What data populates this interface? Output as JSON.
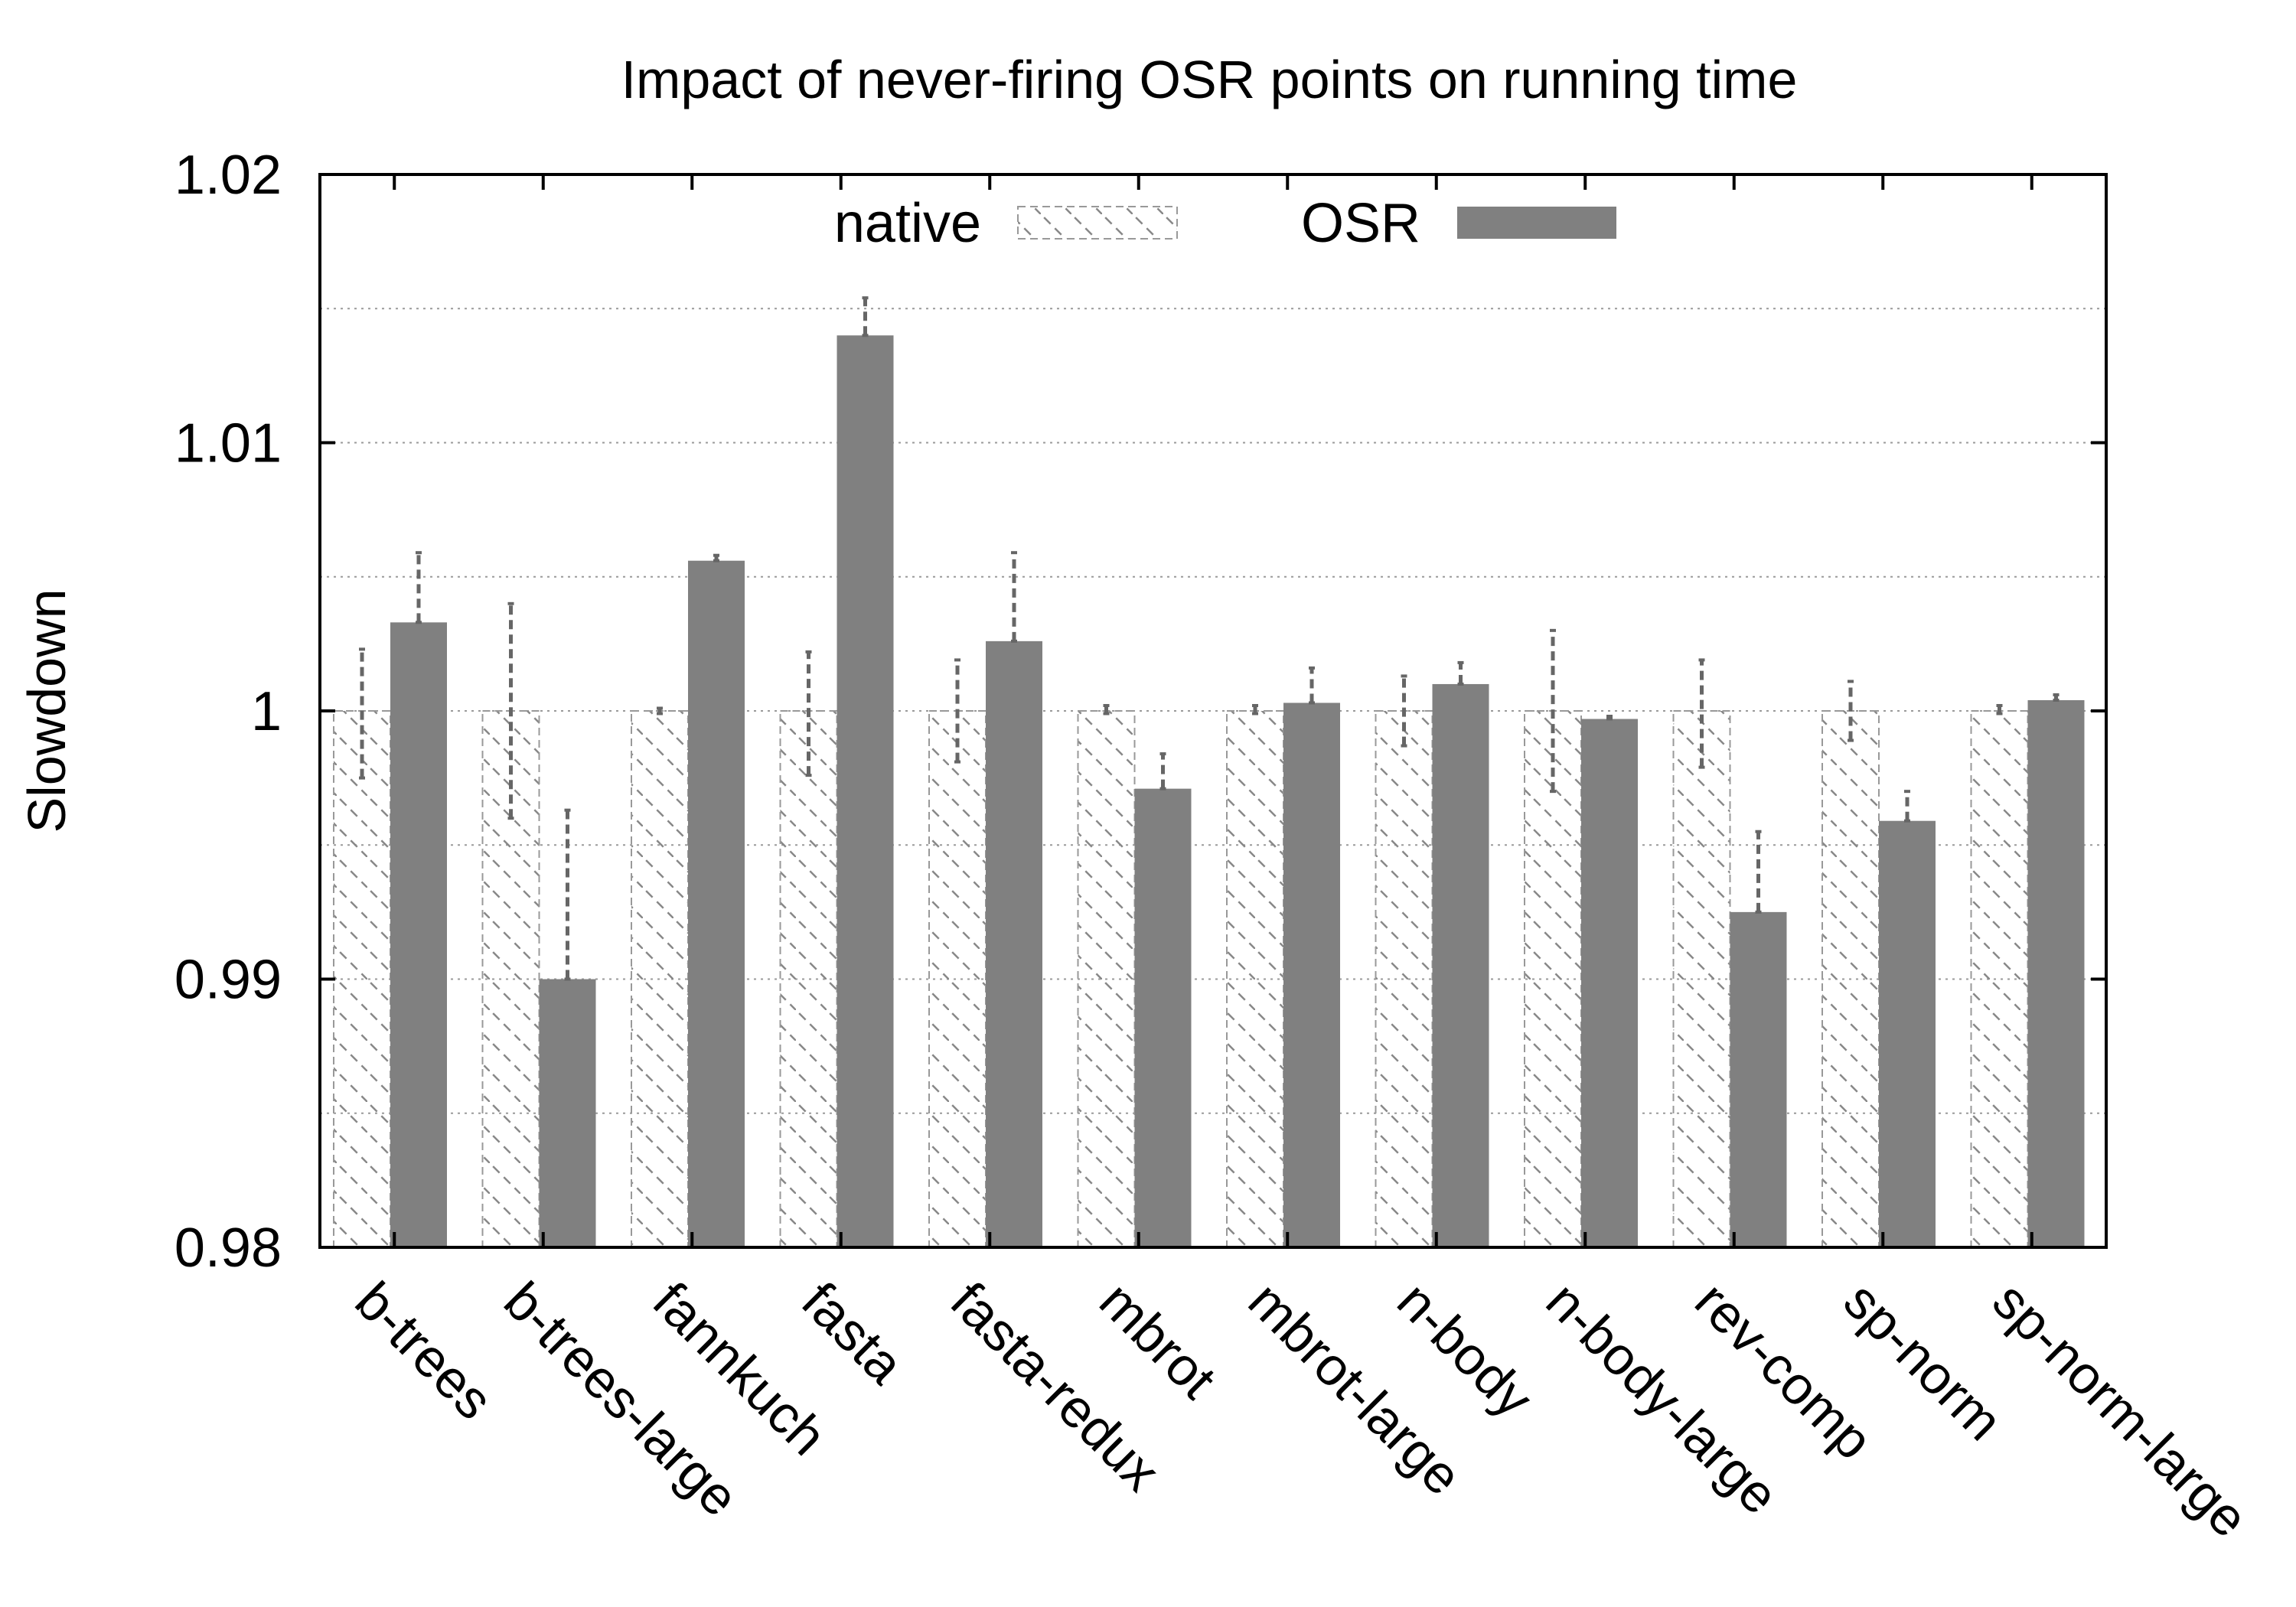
{
  "chart_data": {
    "type": "bar",
    "title": "Impact of never-firing OSR points on running time",
    "xlabel": "",
    "ylabel": "Slowdown",
    "ylim": [
      0.98,
      1.02
    ],
    "yticks": [
      "0.98",
      "0.99",
      "1",
      "1.01",
      "1.02"
    ],
    "ytick_values": [
      0.98,
      0.99,
      1.0,
      1.01,
      1.02
    ],
    "minor_grid": [
      0.985,
      0.995,
      1.005,
      1.015
    ],
    "grid": true,
    "legend_position": "top-center",
    "categories": [
      "b-trees",
      "b-trees-large",
      "fannkuch",
      "fasta",
      "fasta-redux",
      "mbrot",
      "mbrot-large",
      "n-body",
      "n-body-large",
      "rev-comp",
      "sp-norm",
      "sp-norm-large"
    ],
    "series": [
      {
        "name": "native",
        "style": "hatched",
        "color": "#888888",
        "values": [
          1.0,
          1.0,
          1.0,
          1.0,
          1.0,
          1.0,
          1.0,
          1.0,
          1.0,
          1.0,
          1.0,
          1.0
        ],
        "err_low": [
          0.9975,
          0.996,
          0.9999,
          0.9976,
          0.9981,
          0.9999,
          0.9999,
          0.9987,
          0.997,
          0.9979,
          0.9989,
          0.9999
        ],
        "err_high": [
          1.0023,
          1.004,
          1.0001,
          1.0022,
          1.0019,
          1.0002,
          1.0002,
          1.0013,
          1.003,
          1.0019,
          1.0011,
          1.0002
        ]
      },
      {
        "name": "OSR",
        "style": "solid",
        "color": "#808080",
        "values": [
          1.0033,
          0.99,
          1.0056,
          1.014,
          1.0026,
          0.9971,
          1.0003,
          1.001,
          0.9997,
          0.9925,
          0.9959,
          1.0004
        ],
        "err_low": [
          1.0033,
          0.99,
          1.0056,
          1.014,
          1.0026,
          0.9971,
          1.0003,
          1.001,
          0.9997,
          0.9925,
          0.9959,
          1.0004
        ],
        "err_high": [
          1.0059,
          0.9963,
          1.0058,
          1.0154,
          1.0059,
          0.9984,
          1.0016,
          1.0018,
          0.9998,
          0.9955,
          0.997,
          1.0006
        ]
      }
    ]
  }
}
